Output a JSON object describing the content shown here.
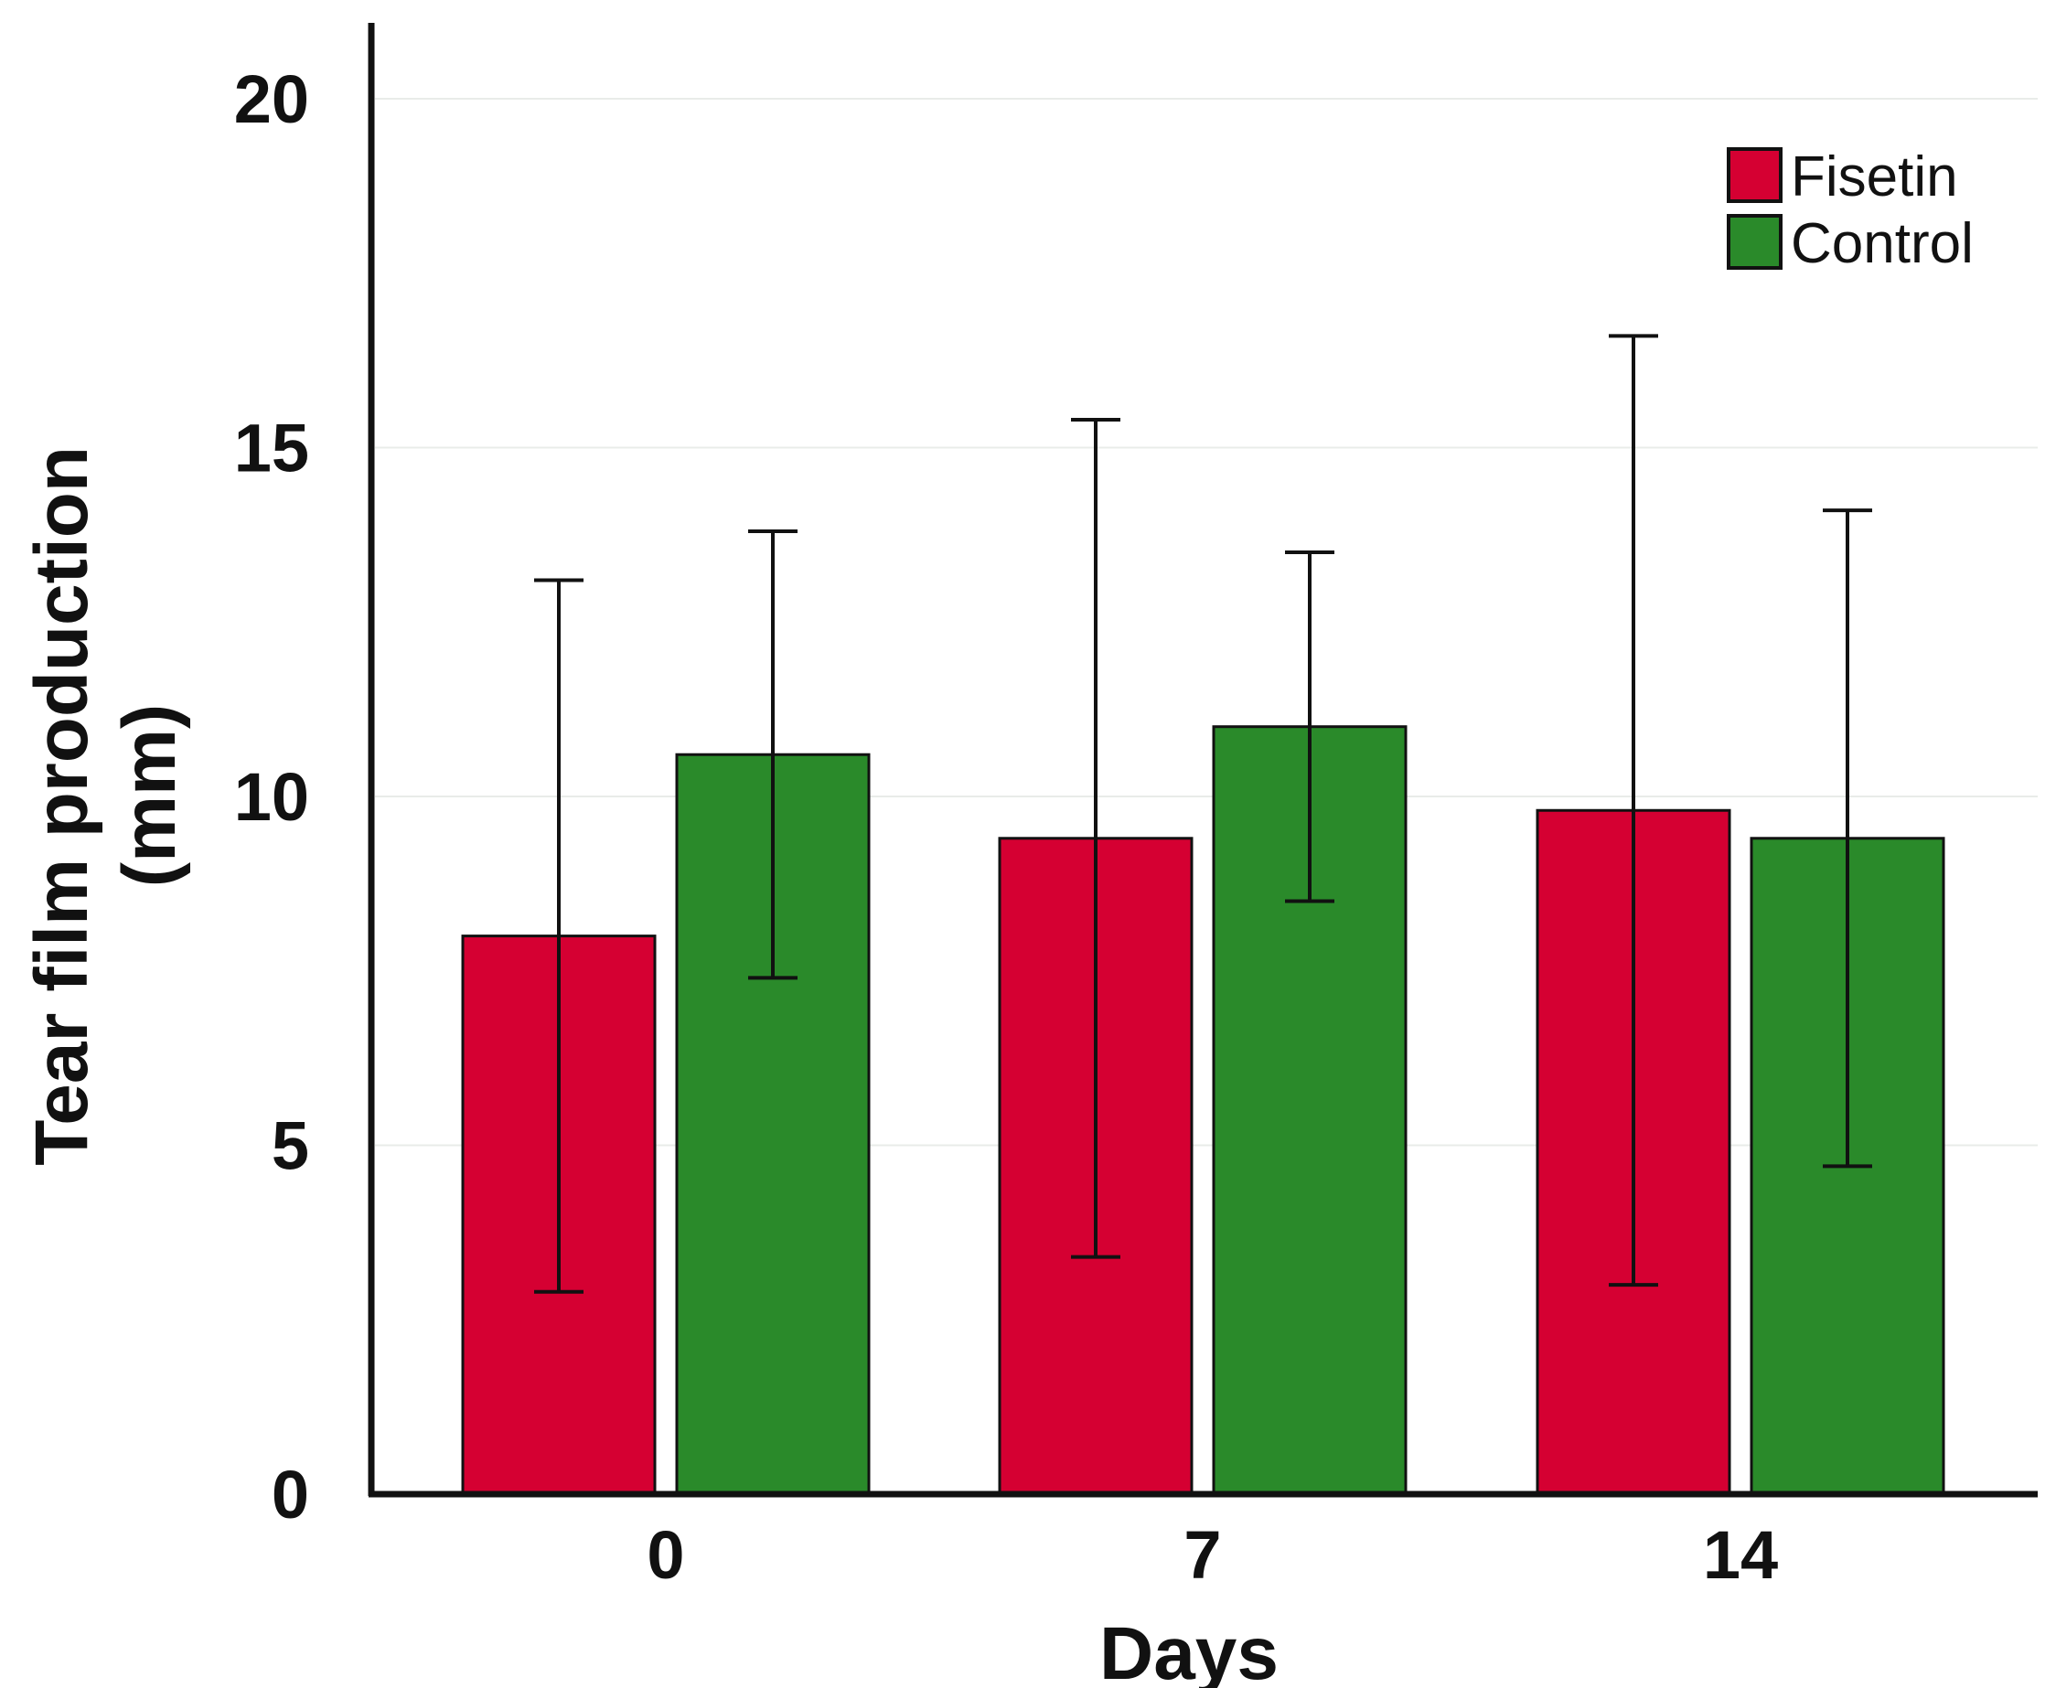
{
  "chart_data": {
    "type": "bar",
    "title": "",
    "xlabel": "Days",
    "ylabel_lines": [
      "Tear film production",
      "(mm)"
    ],
    "categories": [
      "0",
      "7",
      "14"
    ],
    "ylim": [
      0,
      21
    ],
    "yticks": [
      0,
      5,
      10,
      15,
      20
    ],
    "grid": "horizontal, faint",
    "legend_position": "top-right",
    "series": [
      {
        "name": "Fisetin",
        "color": "#d50032",
        "values": [
          8.0,
          9.4,
          9.8
        ],
        "error_low": [
          2.9,
          3.4,
          3.0
        ],
        "error_high": [
          13.1,
          15.4,
          16.6
        ]
      },
      {
        "name": "Control",
        "color": "#2a8a2a",
        "values": [
          10.6,
          11.0,
          9.4
        ],
        "error_low": [
          7.4,
          8.5,
          4.7
        ],
        "error_high": [
          13.8,
          13.5,
          14.1
        ]
      }
    ]
  }
}
